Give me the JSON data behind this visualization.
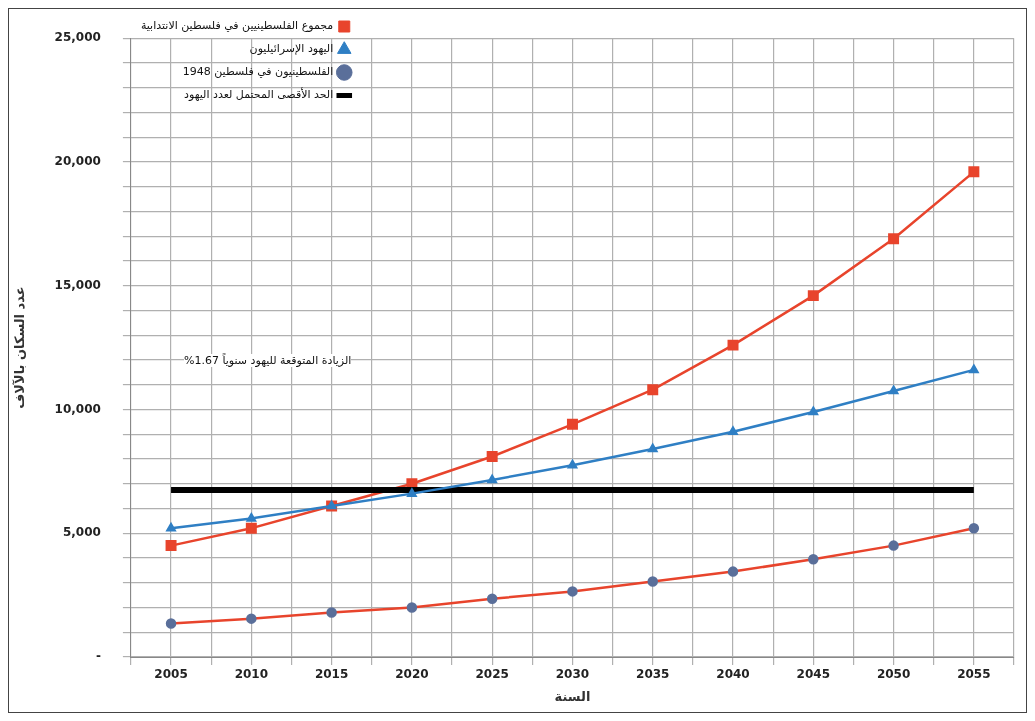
{
  "chart_data": {
    "type": "line",
    "xlabel": "السنة",
    "ylabel": "عدد السكان بالآلاف",
    "x": [
      2005,
      2010,
      2015,
      2020,
      2025,
      2030,
      2035,
      2040,
      2045,
      2050,
      2055
    ],
    "series": [
      {
        "name": "مجموع الفلسطينيين في فلسطين الانتدابية",
        "color": "#e8442c",
        "marker": "square",
        "values": [
          4500,
          5200,
          6100,
          7000,
          8100,
          9400,
          10800,
          12600,
          14600,
          16900,
          19600
        ]
      },
      {
        "name": "اليهود الإسرائيليون",
        "color": "#2f7fc4",
        "marker": "triangle",
        "values": [
          5200,
          5600,
          6100,
          6600,
          7150,
          7750,
          8400,
          9100,
          9900,
          10750,
          11600
        ]
      },
      {
        "name": "الفلسطينيون في فلسطين 1948",
        "color": "#e8442c",
        "marker": "circle",
        "values": [
          1350,
          1550,
          1800,
          2000,
          2350,
          2650,
          3050,
          3450,
          3950,
          4500,
          5200
        ]
      },
      {
        "name": "الحد الأقصى المحتمل لعدد اليهود",
        "color": "#000000",
        "marker": "none",
        "values": [
          6750,
          6750,
          6750,
          6750,
          6750,
          6750,
          6750,
          6750,
          6750,
          6750,
          6750
        ]
      }
    ],
    "xlim": [
      2002.5,
      2057.5
    ],
    "xticks": [
      {
        "value": 2002.5,
        "label": null
      },
      2005,
      {
        "value": 2007.5,
        "label": null
      },
      2010,
      {
        "value": 2012.5,
        "label": null
      },
      2015,
      {
        "value": 2017.5,
        "label": null
      },
      2020,
      {
        "value": 2022.5,
        "label": null
      },
      2025,
      {
        "value": 2027.5,
        "label": null
      },
      2030,
      {
        "value": 2032.5,
        "label": null
      },
      2035,
      {
        "value": 2037.5,
        "label": null
      },
      2040,
      {
        "value": 2042.5,
        "label": null
      },
      2045,
      {
        "value": 2047.5,
        "label": null
      },
      2050,
      {
        "value": 2052.5,
        "label": null
      },
      2055,
      {
        "value": 2057.5,
        "label": null
      }
    ],
    "ylim": [
      0,
      25000
    ],
    "yticks": [
      {
        "value": 0,
        "label": "-"
      },
      {
        "value": 1000,
        "label": null
      },
      {
        "value": 2000,
        "label": null
      },
      {
        "value": 3000,
        "label": null
      },
      {
        "value": 4000,
        "label": null
      },
      {
        "value": 5000,
        "label": "5,000"
      },
      {
        "value": 6000,
        "label": null
      },
      {
        "value": 7000,
        "label": null
      },
      {
        "value": 8000,
        "label": null
      },
      {
        "value": 9000,
        "label": null
      },
      {
        "value": 10000,
        "label": "10,000"
      },
      {
        "value": 11000,
        "label": null
      },
      {
        "value": 12000,
        "label": null
      },
      {
        "value": 13000,
        "label": null
      },
      {
        "value": 14000,
        "label": null
      },
      {
        "value": 15000,
        "label": "15,000"
      },
      {
        "value": 16000,
        "label": null
      },
      {
        "value": 17000,
        "label": null
      },
      {
        "value": 18000,
        "label": null
      },
      {
        "value": 19000,
        "label": null
      },
      {
        "value": 20000,
        "label": "20,000"
      },
      {
        "value": 21000,
        "label": null
      },
      {
        "value": 22000,
        "label": null
      },
      {
        "value": 23000,
        "label": null
      },
      {
        "value": 24000,
        "label": null
      },
      {
        "value": 25000,
        "label": "25,000"
      }
    ],
    "grid": true,
    "legend": "top left",
    "annotations": [
      "الزيادة المتوقعة لليهود سنوياً 1.67%"
    ]
  }
}
